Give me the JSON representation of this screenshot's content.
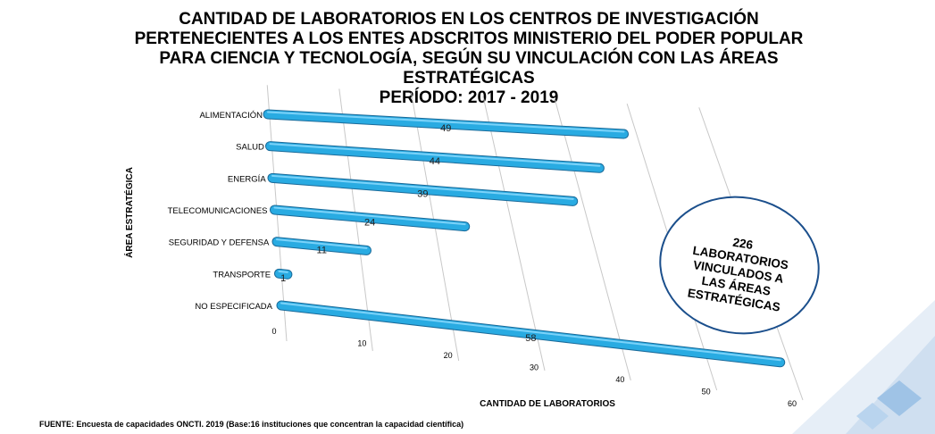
{
  "title_lines": [
    "CANTIDAD DE LABORATORIOS EN LOS CENTROS DE INVESTIGACIÓN",
    "PERTENECIENTES A LOS ENTES ADSCRITOS MINISTERIO DEL PODER POPULAR",
    "PARA CIENCIA Y TECNOLOGÍA, SEGÚN SU VINCULACIÓN CON LAS ÁREAS",
    "ESTRATÉGICAS",
    "PERÍODO: 2017 -  2019"
  ],
  "callout": {
    "total": "226",
    "text": "LABORATORIOS\nVINCULADOS A\nLAS ÁREAS\nESTRATÉGICAS"
  },
  "source": "FUENTE: Encuesta de capacidades ONCTI. 2019 (Base:16 instituciones que concentran la capacidad científica)",
  "colors": {
    "bar": "#29abe2",
    "bar_outline": "#1a6a99",
    "grid": "#c8c8c8"
  },
  "chart_data": {
    "type": "bar",
    "orientation": "horizontal",
    "categories": [
      "ALIMENTACIÓN",
      "SALUD",
      "ENERGÍA",
      "TELECOMUNICACIONES",
      "SEGURIDAD Y DEFENSA",
      "TRANSPORTE",
      "NO ESPECIFICADA"
    ],
    "values": [
      49,
      44,
      39,
      24,
      11,
      1,
      58
    ],
    "xlabel": "CANTIDAD DE LABORATORIOS",
    "ylabel": "ÁREA ESTRATÉGICA",
    "xlim": [
      0,
      60
    ],
    "xticks": [
      0,
      10,
      20,
      30,
      40,
      50,
      60
    ],
    "grid": true
  }
}
